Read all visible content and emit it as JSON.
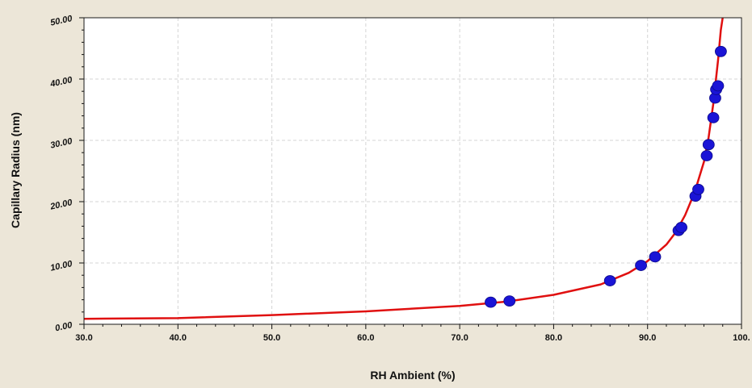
{
  "chart_data": {
    "type": "scatter",
    "xlabel": "RH Ambient (%)",
    "ylabel": "Capillary Radius (nm)",
    "xlim": [
      30,
      100
    ],
    "ylim": [
      0,
      50
    ],
    "x_ticks": [
      "30.0",
      "40.0",
      "50.0",
      "60.0",
      "70.0",
      "80.0",
      "90.0",
      "100."
    ],
    "y_ticks": [
      "0.00",
      "10.00",
      "20.00",
      "30.00",
      "40.00",
      "50.00"
    ],
    "grid": true,
    "colors": {
      "points": "#1a14d6",
      "curve": "#e01010",
      "plot_bg": "#ffffff",
      "frame_bg": "#ece6d8"
    },
    "series": [
      {
        "kind": "points",
        "x": [
          73.3,
          75.3,
          86.0,
          89.3,
          90.8,
          93.3,
          93.6,
          95.1,
          95.4,
          96.3,
          96.5,
          97.0,
          97.2,
          97.3,
          97.5,
          97.8
        ],
        "y": [
          3.6,
          3.8,
          7.1,
          9.6,
          11.0,
          15.3,
          15.8,
          20.9,
          22.0,
          27.5,
          29.3,
          33.7,
          36.9,
          38.3,
          38.9,
          44.5
        ]
      },
      {
        "kind": "curve",
        "x": [
          30,
          40,
          50,
          60,
          70,
          75,
          80,
          85,
          88,
          90,
          92,
          93,
          94,
          95,
          96,
          96.5,
          97,
          97.5,
          97.8,
          98.0
        ],
        "y": [
          0.9,
          1.0,
          1.5,
          2.1,
          3.0,
          3.7,
          4.8,
          6.5,
          8.4,
          10.3,
          13.0,
          15.0,
          17.8,
          21.5,
          26.5,
          30.5,
          36.0,
          43.0,
          48.0,
          50.0
        ]
      }
    ]
  }
}
